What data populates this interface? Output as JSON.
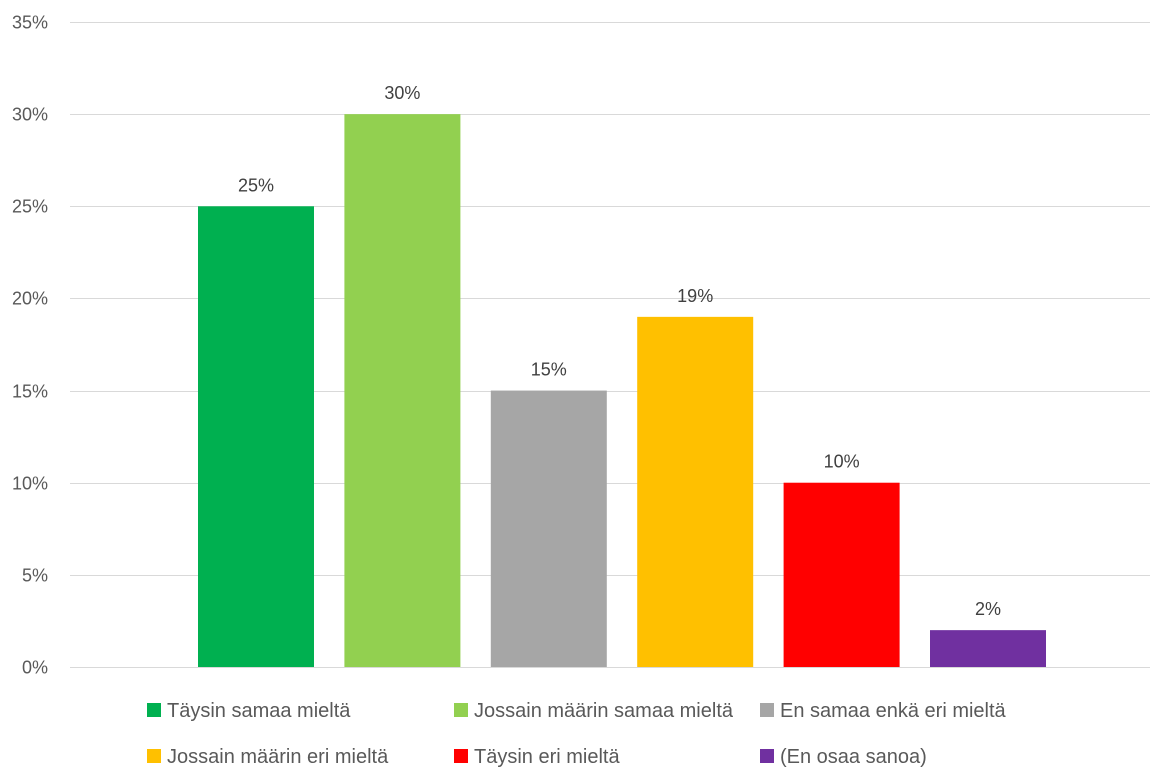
{
  "chart_data": {
    "type": "bar",
    "title": "",
    "xlabel": "",
    "ylabel": "",
    "ylim": [
      0,
      35
    ],
    "y_tick_values": [
      0,
      5,
      10,
      15,
      20,
      25,
      30,
      35
    ],
    "y_tick_labels": [
      "0%",
      "5%",
      "10%",
      "15%",
      "20%",
      "25%",
      "30%",
      "35%"
    ],
    "grid": true,
    "legend_position": "bottom",
    "categories": [
      "Täysin samaa mieltä",
      "Jossain määrin samaa mieltä",
      "En samaa enkä eri mieltä",
      "Jossain määrin eri mieltä",
      "Täysin eri mieltä",
      "(En osaa sanoa)"
    ],
    "series": [
      {
        "values": [
          25,
          30,
          15,
          19,
          10,
          2
        ],
        "data_labels": [
          "25%",
          "30%",
          "15%",
          "19%",
          "10%",
          "2%"
        ]
      }
    ],
    "colors": [
      "#00b050",
      "#92d050",
      "#a6a6a6",
      "#ffc000",
      "#ff0000",
      "#7030a0"
    ]
  }
}
